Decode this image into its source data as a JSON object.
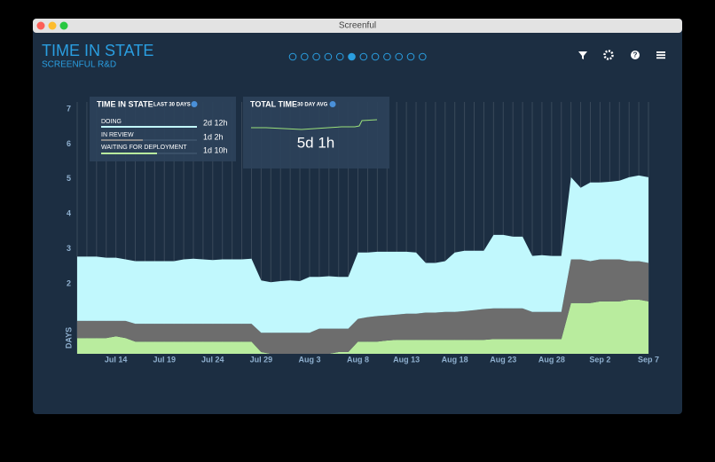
{
  "window": {
    "title": "Screenful"
  },
  "header": {
    "title": "TIME IN STATE",
    "subtitle": "SCREENFUL R&D"
  },
  "summary": {
    "title": "TIME IN STATE",
    "subtitle": "LAST 30 DAYS",
    "rows": [
      {
        "label": "DOING",
        "value": "2d 12h"
      },
      {
        "label": "IN REVIEW",
        "value": "1d 2h"
      },
      {
        "label": "WAITING FOR DEPLOYMENT",
        "value": "1d 10h"
      }
    ]
  },
  "total": {
    "title": "TOTAL TIME",
    "subtitle": "30 DAY AVG",
    "value": "5d 1h"
  },
  "chart_data": {
    "type": "stacked-area",
    "y_label": "DAYS",
    "x": [
      "Jul 10",
      "Jul 11",
      "Jul 12",
      "Jul 13",
      "Jul 14",
      "Jul 15",
      "Jul 16",
      "Jul 17",
      "Jul 18",
      "Jul 19",
      "Jul 20",
      "Jul 21",
      "Jul 22",
      "Jul 23",
      "Jul 24",
      "Jul 25",
      "Jul 26",
      "Jul 27",
      "Jul 28",
      "Jul 29",
      "Jul 30",
      "Jul 31",
      "Aug 1",
      "Aug 2",
      "Aug 3",
      "Aug 4",
      "Aug 5",
      "Aug 6",
      "Aug 7",
      "Aug 8",
      "Aug 9",
      "Aug 10",
      "Aug 11",
      "Aug 12",
      "Aug 13",
      "Aug 14",
      "Aug 15",
      "Aug 16",
      "Aug 17",
      "Aug 18",
      "Aug 19",
      "Aug 20",
      "Aug 21",
      "Aug 22",
      "Aug 23",
      "Aug 24",
      "Aug 25",
      "Aug 26",
      "Aug 27",
      "Aug 28",
      "Aug 29",
      "Aug 30",
      "Aug 31",
      "Sep 1",
      "Sep 2",
      "Sep 3",
      "Sep 4",
      "Sep 5",
      "Sep 6",
      "Sep 7"
    ],
    "xticks": [
      "Jul 14",
      "Jul 19",
      "Jul 24",
      "Jul 29",
      "Aug 3",
      "Aug 8",
      "Aug 13",
      "Aug 18",
      "Aug 23",
      "Aug 28",
      "Sep 2",
      "Sep 7"
    ],
    "ylim": [
      0,
      7
    ],
    "yticks": [
      2,
      3,
      4,
      5,
      6,
      7
    ],
    "series": [
      {
        "color": "#b9ec9e",
        "values": [
          0.45,
          0.45,
          0.45,
          0.45,
          0.5,
          0.45,
          0.35,
          0.35,
          0.35,
          0.35,
          0.35,
          0.35,
          0.35,
          0.35,
          0.35,
          0.35,
          0.35,
          0.35,
          0.35,
          0.05,
          0,
          0,
          0,
          0,
          0,
          0,
          0,
          0.05,
          0.05,
          0.35,
          0.35,
          0.35,
          0.38,
          0.4,
          0.4,
          0.4,
          0.4,
          0.4,
          0.4,
          0.4,
          0.4,
          0.4,
          0.4,
          0.42,
          0.42,
          0.42,
          0.42,
          0.42,
          0.42,
          0.42,
          0.42,
          1.45,
          1.45,
          1.45,
          1.5,
          1.5,
          1.5,
          1.55,
          1.55,
          1.5
        ]
      },
      {
        "color": "#6d6d6d",
        "values": [
          0.49,
          0.49,
          0.49,
          0.49,
          0.44,
          0.49,
          0.51,
          0.51,
          0.51,
          0.51,
          0.51,
          0.51,
          0.51,
          0.51,
          0.51,
          0.51,
          0.51,
          0.51,
          0.51,
          0.55,
          0.6,
          0.6,
          0.6,
          0.6,
          0.6,
          0.72,
          0.72,
          0.67,
          0.67,
          0.65,
          0.7,
          0.73,
          0.72,
          0.72,
          0.75,
          0.75,
          0.78,
          0.78,
          0.8,
          0.8,
          0.82,
          0.85,
          0.88,
          0.88,
          0.88,
          0.88,
          0.88,
          0.78,
          0.78,
          0.78,
          0.78,
          1.25,
          1.25,
          1.2,
          1.2,
          1.2,
          1.2,
          1.1,
          1.1,
          1.1
        ]
      },
      {
        "color": "#c1f8fd",
        "values": [
          1.84,
          1.84,
          1.84,
          1.81,
          1.81,
          1.76,
          1.79,
          1.79,
          1.79,
          1.79,
          1.79,
          1.84,
          1.86,
          1.84,
          1.82,
          1.84,
          1.84,
          1.84,
          1.86,
          1.5,
          1.45,
          1.48,
          1.5,
          1.48,
          1.6,
          1.48,
          1.5,
          1.48,
          1.48,
          1.9,
          1.85,
          1.84,
          1.82,
          1.8,
          1.77,
          1.75,
          1.42,
          1.42,
          1.45,
          1.7,
          1.73,
          1.7,
          1.67,
          2.1,
          2.1,
          2.05,
          2.05,
          1.6,
          1.62,
          1.6,
          1.6,
          2.35,
          2.05,
          2.25,
          2.2,
          2.22,
          2.25,
          2.4,
          2.45,
          2.45
        ]
      }
    ]
  }
}
